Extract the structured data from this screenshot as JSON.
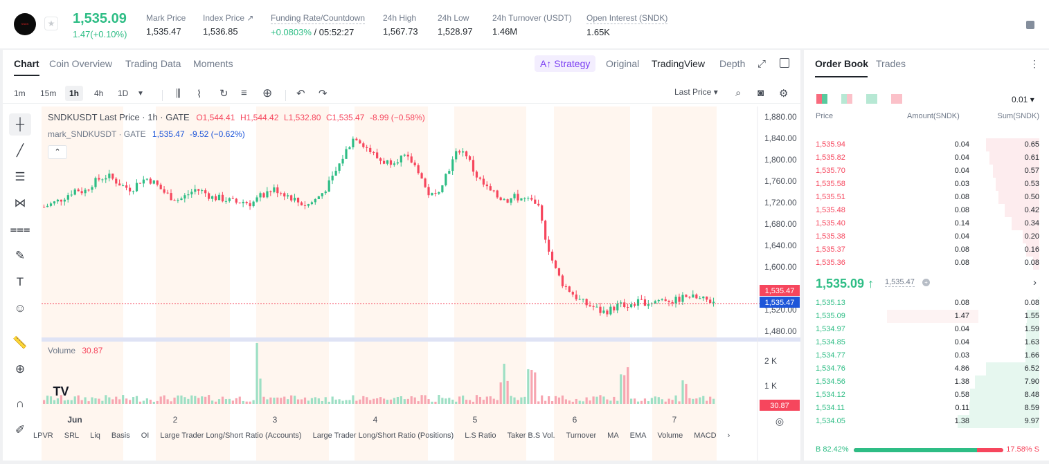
{
  "ticker": {
    "logo_text": "SNDK",
    "price": "1,535.09",
    "change": "1.47(+0.10%)",
    "stats": [
      {
        "label": "Mark Price",
        "value": "1,535.47"
      },
      {
        "label": "Index Price ↗",
        "value": "1,536.85"
      },
      {
        "label": "Funding Rate/Countdown",
        "value": "+0.0803%",
        "value2": " / 05:52:27"
      },
      {
        "label": "24h High",
        "value": "1,567.73"
      },
      {
        "label": "24h Low",
        "value": "1,528.97"
      },
      {
        "label": "24h Turnover (USDT)",
        "value": "1.46M"
      },
      {
        "label": "Open Interest (SNDK)",
        "value": "1.65K"
      }
    ]
  },
  "chart_tabs": [
    "Chart",
    "Coin Overview",
    "Trading Data",
    "Moments"
  ],
  "view_tabs": {
    "strategy": "A↑ Strategy",
    "original": "Original",
    "tradingview": "TradingView",
    "depth": "Depth"
  },
  "timeframes": [
    "1m",
    "15m",
    "1h",
    "4h",
    "1D"
  ],
  "price_type": "Last Price ▾",
  "legend": {
    "title": "SNDKUSDT Last Price · 1h · GATE",
    "o": "O1,544.41",
    "h": "H1,544.42",
    "l": "L1,532.80",
    "c": "C1,535.47",
    "chg": "-8.99 (−0.58%)",
    "mark": "mark_SNDKUSDT · GATE",
    "mark_val": "1,535.47",
    "mark_chg": "-9.52 (−0.62%)",
    "volume_label": "Volume",
    "volume_val": "30.87"
  },
  "chart_data": {
    "type": "candlestick",
    "y_ticks": [
      "1,880.00",
      "1,840.00",
      "1,800.00",
      "1,760.00",
      "1,720.00",
      "1,680.00",
      "1,640.00",
      "1,600.00",
      "1,560.00",
      "1,520.00",
      "1,480.00"
    ],
    "ylim": [
      1480,
      1880
    ],
    "x_ticks": [
      "Jun",
      "2",
      "3",
      "4",
      "5",
      "6",
      "7"
    ],
    "volume_ticks": [
      "2 K",
      "1 K"
    ],
    "last_price_label": "1,535.47",
    "mark_price_label": "1,535.47",
    "volume_last_label": "30.87",
    "close_path": [
      1712,
      1718,
      1725,
      1735,
      1745,
      1740,
      1755,
      1765,
      1770,
      1760,
      1750,
      1745,
      1760,
      1765,
      1755,
      1740,
      1730,
      1725,
      1735,
      1745,
      1740,
      1730,
      1728,
      1725,
      1720,
      1722,
      1718,
      1730,
      1740,
      1745,
      1738,
      1730,
      1720,
      1715,
      1725,
      1740,
      1760,
      1790,
      1820,
      1845,
      1830,
      1815,
      1800,
      1795,
      1800,
      1805,
      1798,
      1780,
      1740,
      1730,
      1760,
      1790,
      1820,
      1810,
      1775,
      1755,
      1740,
      1730,
      1725,
      1730,
      1728,
      1722,
      1710,
      1650,
      1600,
      1570,
      1555,
      1540,
      1530,
      1525,
      1515,
      1520,
      1528,
      1530,
      1532,
      1535,
      1533,
      1538,
      1540,
      1536,
      1542,
      1545,
      1540,
      1538,
      1535
    ]
  },
  "bottom_indicators": [
    "LPVR",
    "SRL",
    "Liq",
    "Basis",
    "OI",
    "Large Trader Long/Short Ratio (Accounts)",
    "Large Trader Long/Short Ratio (Positions)",
    "L.S Ratio",
    "Taker B.S Vol.",
    "Turnover",
    "MA",
    "EMA",
    "Volume",
    "MACD"
  ],
  "orderbook": {
    "tabs": [
      "Order Book",
      "Trades"
    ],
    "precision": "0.01 ▾",
    "headers": [
      "Price",
      "Amount(SNDK)",
      "Sum(SNDK)"
    ],
    "asks": [
      {
        "price": "1,535.94",
        "amount": "0.04",
        "sum": "0.65",
        "depth": 0.65
      },
      {
        "price": "1,535.82",
        "amount": "0.04",
        "sum": "0.61",
        "depth": 0.61
      },
      {
        "price": "1,535.70",
        "amount": "0.04",
        "sum": "0.57",
        "depth": 0.57
      },
      {
        "price": "1,535.58",
        "amount": "0.03",
        "sum": "0.53",
        "depth": 0.53
      },
      {
        "price": "1,535.51",
        "amount": "0.08",
        "sum": "0.50",
        "depth": 0.5
      },
      {
        "price": "1,535.48",
        "amount": "0.08",
        "sum": "0.42",
        "depth": 0.42
      },
      {
        "price": "1,535.40",
        "amount": "0.14",
        "sum": "0.34",
        "depth": 0.34
      },
      {
        "price": "1,535.38",
        "amount": "0.04",
        "sum": "0.20",
        "depth": 0.2
      },
      {
        "price": "1,535.37",
        "amount": "0.08",
        "sum": "0.16",
        "depth": 0.16
      },
      {
        "price": "1,535.36",
        "amount": "0.08",
        "sum": "0.08",
        "depth": 0.08
      }
    ],
    "mid_price": "1,535.09 ↑",
    "mid_mark": "1,535.47",
    "bids": [
      {
        "price": "1,535.13",
        "amount": "0.08",
        "sum": "0.08",
        "depth": 0.008
      },
      {
        "price": "1,535.09",
        "amount": "1.47",
        "sum": "1.55",
        "depth": 0.155
      },
      {
        "price": "1,534.97",
        "amount": "0.04",
        "sum": "1.59",
        "depth": 0.159
      },
      {
        "price": "1,534.85",
        "amount": "0.04",
        "sum": "1.63",
        "depth": 0.163
      },
      {
        "price": "1,534.77",
        "amount": "0.03",
        "sum": "1.66",
        "depth": 0.166
      },
      {
        "price": "1,534.76",
        "amount": "4.86",
        "sum": "6.52",
        "depth": 0.652
      },
      {
        "price": "1,534.56",
        "amount": "1.38",
        "sum": "7.90",
        "depth": 0.79
      },
      {
        "price": "1,534.12",
        "amount": "0.58",
        "sum": "8.48",
        "depth": 0.848
      },
      {
        "price": "1,534.11",
        "amount": "0.11",
        "sum": "8.59",
        "depth": 0.859
      },
      {
        "price": "1,534.05",
        "amount": "1.38",
        "sum": "9.97",
        "depth": 0.997
      }
    ],
    "buy_ratio": "B 82.42%",
    "sell_ratio": "17.58% S",
    "buy_fraction": 0.8242
  },
  "colors": {
    "up": "#2ebd85",
    "down": "#f6465d",
    "mark": "#1e56d9"
  }
}
